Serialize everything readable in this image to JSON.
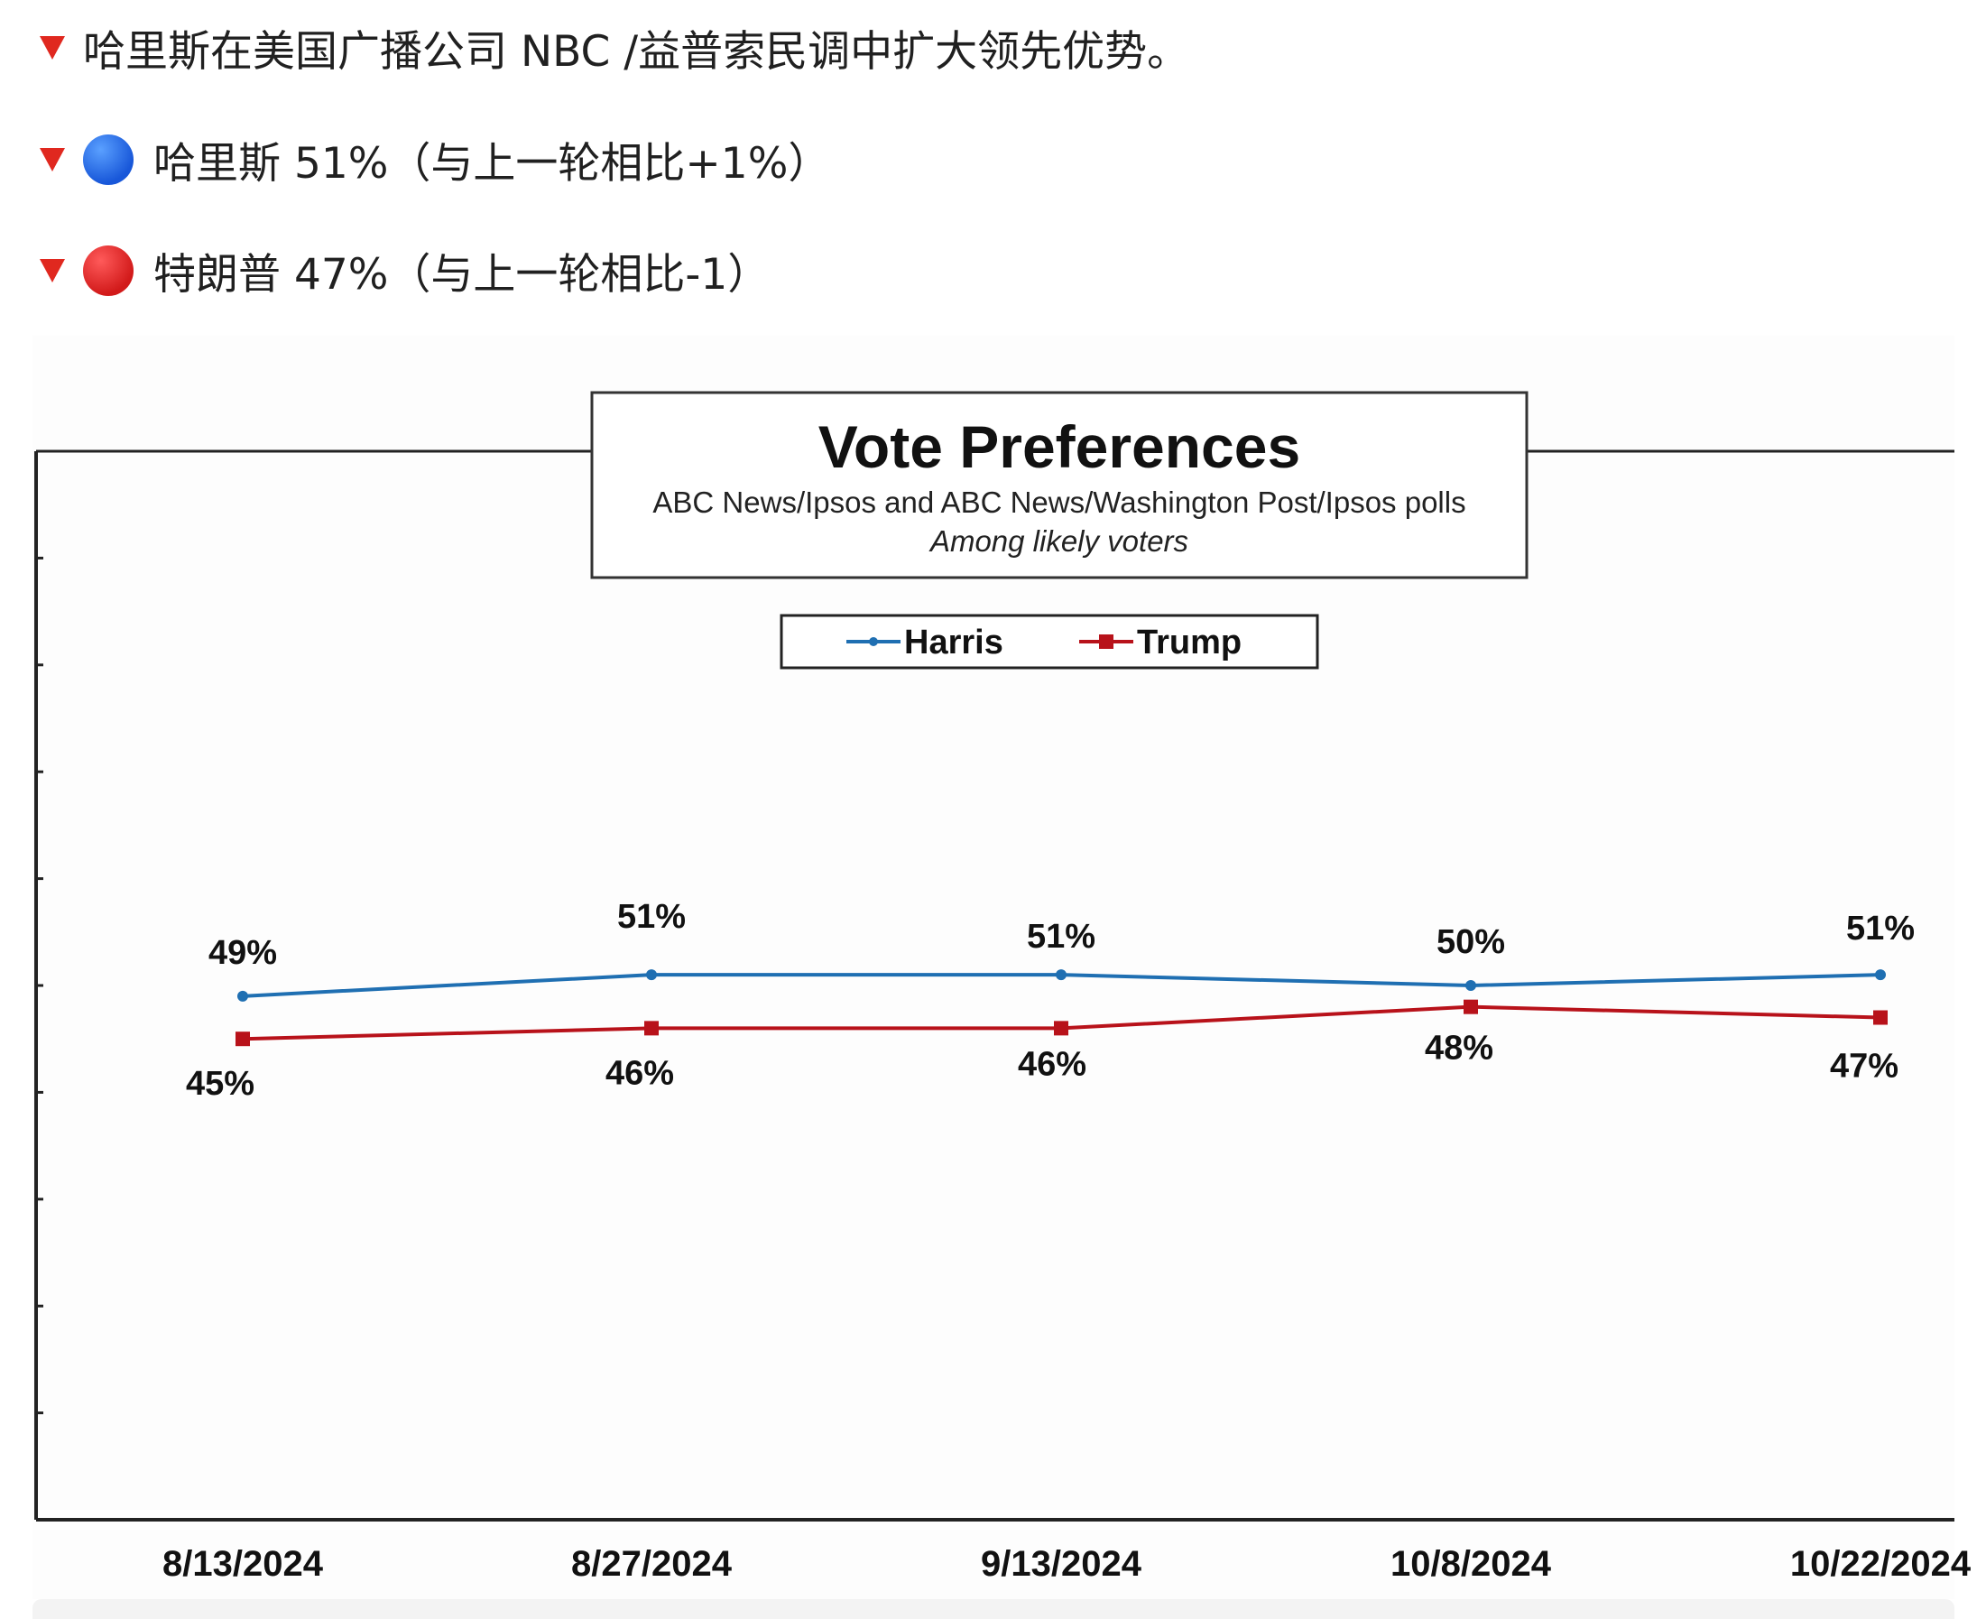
{
  "post": {
    "line1": "哈里斯在美国广播公司 NBC /益普索民调中扩大领先优势。",
    "line2": "哈里斯 51%（与上一轮相比+1%）",
    "line3": "特朗普 47%（与上一轮相比-1）"
  },
  "colors": {
    "bullet": "#e0281f",
    "harris": "#1f6fb2",
    "trump": "#b8121a"
  },
  "chart_data": {
    "type": "line",
    "title": "Vote Preferences",
    "subtitle": "ABC News/Ipsos and ABC News/Washington Post/Ipsos polls",
    "subtitle2": "Among likely voters",
    "categories": [
      "8/13/2024",
      "8/27/2024",
      "9/13/2024",
      "10/8/2024",
      "10/22/2024"
    ],
    "series": [
      {
        "name": "Harris",
        "values": [
          49,
          51,
          51,
          50,
          51
        ],
        "labels": [
          "49%",
          "51%",
          "51%",
          "50%",
          "51%"
        ]
      },
      {
        "name": "Trump",
        "values": [
          45,
          46,
          46,
          48,
          47
        ],
        "labels": [
          "45%",
          "46%",
          "46%",
          "48%",
          "47%"
        ]
      }
    ],
    "ylim": [
      0,
      100
    ],
    "legend_position": "top-center",
    "grid": false
  }
}
